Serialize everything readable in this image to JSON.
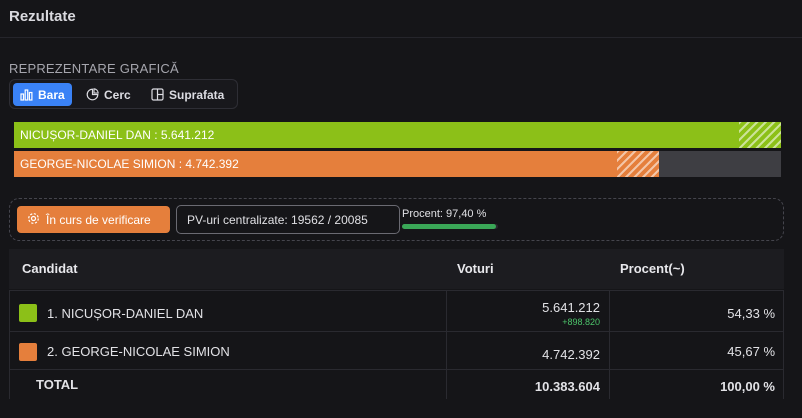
{
  "header": {
    "title": "Rezultate"
  },
  "section": {
    "label": "REPREZENTARE GRAFICĂ"
  },
  "view_toggle": {
    "options": [
      {
        "label": "Bara",
        "icon": "bar-chart-icon",
        "active": true
      },
      {
        "label": "Cerc",
        "icon": "pie-chart-icon",
        "active": false
      },
      {
        "label": "Suprafata",
        "icon": "area-chart-icon",
        "active": false
      }
    ]
  },
  "bars": [
    {
      "label": "NICUȘOR-DANIEL DAN : 5.641.212",
      "fraction": 1.0,
      "color": "#8cc018"
    },
    {
      "label": "GEORGE-NICOLAE SIMION : 4.742.392",
      "fraction": 0.841,
      "color": "#e57f3c"
    }
  ],
  "bar_track_color": "#3e3e43",
  "status": {
    "verification_label": "În curs de verificare",
    "pv_label": "PV-uri centralizate: 19562 / 20085",
    "percent_label": "Procent: 97,40 %",
    "percent_value": 97.4
  },
  "table": {
    "headers": {
      "candidate": "Candidat",
      "votes": "Voturi",
      "percent": "Procent(~)"
    },
    "rows": [
      {
        "name": "1. NICUȘOR-DANIEL DAN",
        "votes": "5.641.212",
        "delta": "+898.820",
        "percent": "54,33 %",
        "color": "#8cc018"
      },
      {
        "name": "2. GEORGE-NICOLAE SIMION",
        "votes": "4.742.392",
        "delta": "",
        "percent": "45,67 %",
        "color": "#e57f3c"
      }
    ],
    "total": {
      "label": "TOTAL",
      "votes": "10.383.604",
      "percent": "100,00 %"
    }
  }
}
